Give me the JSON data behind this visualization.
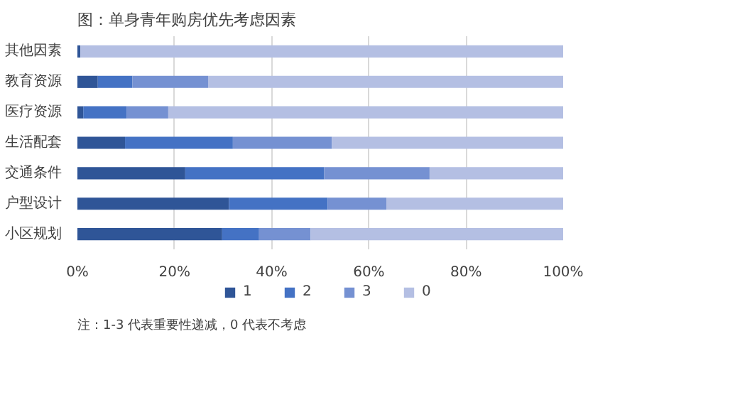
{
  "chart_data": {
    "type": "bar",
    "orientation": "horizontal",
    "stacked": true,
    "title": "图：单身青年购房优先考虑因素",
    "categories": [
      "其他因素",
      "教育资源",
      "医疗资源",
      "生活配套",
      "交通条件",
      "户型设计",
      "小区规划"
    ],
    "series": [
      {
        "name": "1",
        "color": "#2f5597",
        "values": [
          0.6,
          4.2,
          1.2,
          9.8,
          22.2,
          31.2,
          29.8
        ]
      },
      {
        "name": "2",
        "color": "#4472c4",
        "values": [
          0,
          7.1,
          8.9,
          22.2,
          28.6,
          20.3,
          7.6
        ]
      },
      {
        "name": "3",
        "color": "#7591d2",
        "values": [
          0,
          15.6,
          8.6,
          20.4,
          21.7,
          12.1,
          10.6
        ]
      },
      {
        "name": "0",
        "color": "#b4bfe3",
        "values": [
          99.4,
          73.1,
          81.3,
          47.6,
          27.5,
          36.4,
          52.0
        ]
      }
    ],
    "xlim": [
      0,
      100
    ],
    "xticks": [
      {
        "value": 0,
        "label": "0%"
      },
      {
        "value": 20,
        "label": "20%"
      },
      {
        "value": 40,
        "label": "40%"
      },
      {
        "value": 60,
        "label": "60%"
      },
      {
        "value": 80,
        "label": "80%"
      },
      {
        "value": 100,
        "label": "100%"
      }
    ],
    "grid": "x",
    "legend": "bottom",
    "annotations": [
      "注：1-3 代表重要性递减，0 代表不考虑"
    ]
  }
}
